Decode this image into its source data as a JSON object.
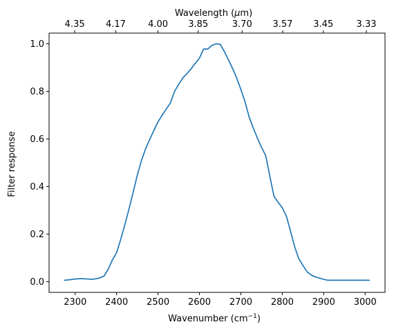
{
  "chart_data": {
    "type": "line",
    "title": "",
    "xlabel_prefix": "Wavenumber (cm",
    "xlabel_sup": "−1",
    "xlabel_suffix": ")",
    "ylabel": "Filter response",
    "top_xlabel_prefix": "Wavelength (",
    "top_xlabel_mu": "μ",
    "top_xlabel_suffix": "m)",
    "xlim": [
      2237,
      3048
    ],
    "ylim": [
      -0.045,
      1.045
    ],
    "grid": false,
    "line_color": "#1f77b4",
    "xticks": [
      {
        "value": 2300,
        "label": "2300"
      },
      {
        "value": 2400,
        "label": "2400"
      },
      {
        "value": 2500,
        "label": "2500"
      },
      {
        "value": 2600,
        "label": "2600"
      },
      {
        "value": 2700,
        "label": "2700"
      },
      {
        "value": 2800,
        "label": "2800"
      },
      {
        "value": 2900,
        "label": "2900"
      },
      {
        "value": 3000,
        "label": "3000"
      }
    ],
    "yticks": [
      {
        "value": 0.0,
        "label": "0.0"
      },
      {
        "value": 0.2,
        "label": "0.2"
      },
      {
        "value": 0.4,
        "label": "0.4"
      },
      {
        "value": 0.6,
        "label": "0.6"
      },
      {
        "value": 0.8,
        "label": "0.8"
      },
      {
        "value": 1.0,
        "label": "1.0"
      }
    ],
    "top_ticks": [
      {
        "value": 2299,
        "label": "4.35"
      },
      {
        "value": 2398,
        "label": "4.17"
      },
      {
        "value": 2500,
        "label": "4.00"
      },
      {
        "value": 2597,
        "label": "3.85"
      },
      {
        "value": 2703,
        "label": "3.70"
      },
      {
        "value": 2801,
        "label": "3.57"
      },
      {
        "value": 2899,
        "label": "3.45"
      },
      {
        "value": 3003,
        "label": "3.33"
      }
    ],
    "series": [
      {
        "x": [
          2274,
          2290,
          2305,
          2315,
          2330,
          2340,
          2350,
          2360,
          2370,
          2380,
          2390,
          2400,
          2410,
          2420,
          2430,
          2440,
          2450,
          2460,
          2470,
          2480,
          2490,
          2500,
          2510,
          2520,
          2530,
          2540,
          2550,
          2560,
          2570,
          2580,
          2590,
          2600,
          2610,
          2620,
          2630,
          2640,
          2650,
          2660,
          2670,
          2680,
          2690,
          2700,
          2710,
          2720,
          2730,
          2740,
          2750,
          2760,
          2770,
          2780,
          2790,
          2800,
          2810,
          2820,
          2830,
          2840,
          2850,
          2860,
          2870,
          2880,
          2890,
          2900,
          2910,
          2920,
          2930,
          2940,
          2950,
          2960,
          2970,
          2980,
          2990,
          3000,
          3010
        ],
        "y": [
          0.006,
          0.009,
          0.012,
          0.013,
          0.011,
          0.01,
          0.012,
          0.016,
          0.024,
          0.053,
          0.092,
          0.122,
          0.178,
          0.24,
          0.306,
          0.376,
          0.448,
          0.509,
          0.559,
          0.598,
          0.636,
          0.672,
          0.7,
          0.726,
          0.752,
          0.8,
          0.83,
          0.857,
          0.875,
          0.895,
          0.918,
          0.94,
          0.978,
          0.978,
          0.993,
          1.0,
          0.998,
          0.968,
          0.933,
          0.896,
          0.856,
          0.808,
          0.757,
          0.692,
          0.646,
          0.603,
          0.564,
          0.53,
          0.443,
          0.358,
          0.334,
          0.311,
          0.275,
          0.212,
          0.146,
          0.096,
          0.068,
          0.041,
          0.028,
          0.02,
          0.015,
          0.01,
          0.006,
          0.006,
          0.006,
          0.006,
          0.006,
          0.006,
          0.006,
          0.006,
          0.006,
          0.006,
          0.006
        ]
      }
    ]
  }
}
